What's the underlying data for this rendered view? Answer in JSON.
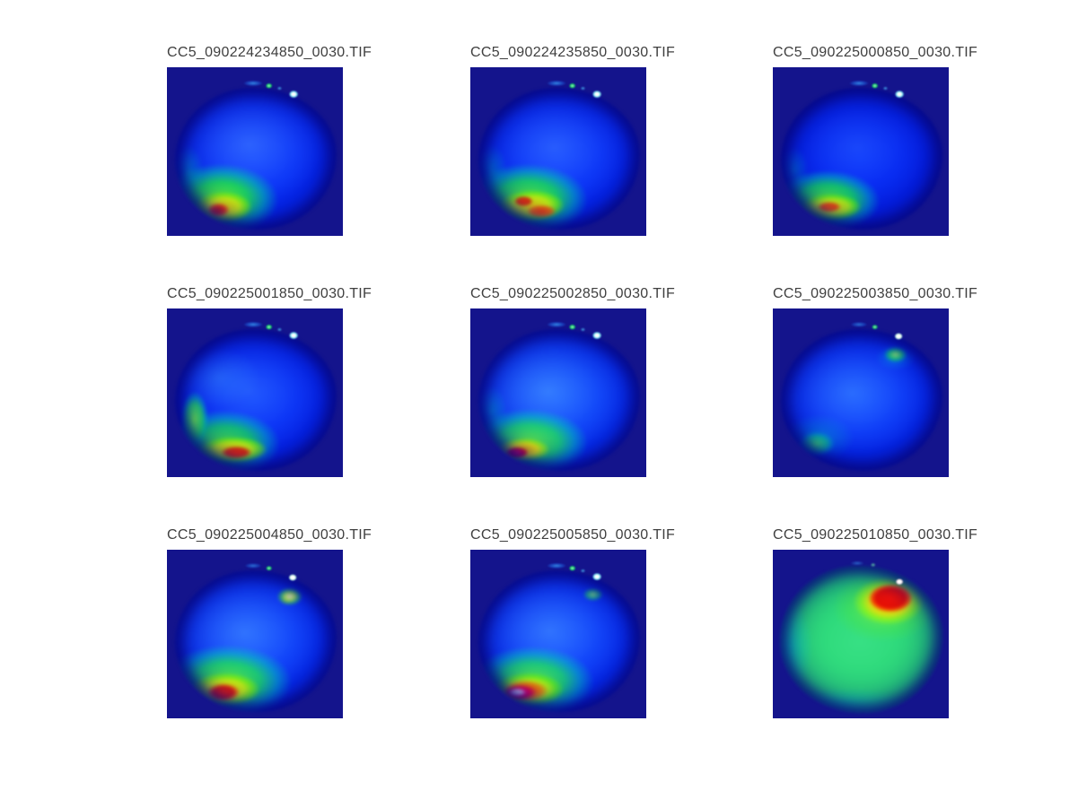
{
  "figure": {
    "background_color": "#ffffff",
    "tile_background_color": "#14148c",
    "title_color": "#3f3f3f"
  },
  "chart_data": {
    "type": "heatmap",
    "subtype": "thermal_image_montage",
    "colormap": "jet",
    "grid": {
      "rows": 3,
      "cols": 3
    },
    "background_color": "#ffffff",
    "tile_background_color": "#14148c",
    "legend": "none",
    "axes": "none",
    "panels": [
      {
        "title": "CC5_090224234850_0030.TIF",
        "row": 1,
        "col": 1,
        "body": "blue disc, brighter blue center",
        "hot_region": "bottom-left green/yellow wedge with small red core at (27%,86%)",
        "top_spots": "green speck (58%,11%), white spot (72%,16%), faint cyan streak"
      },
      {
        "title": "CC5_090224235850_0030.TIF",
        "row": 1,
        "col": 2,
        "body": "blue disc",
        "hot_region": "bottom-left elongated red-orange arc from (28%,80%) to (39%,87%) in yellow-green halo",
        "top_spots": "green speck, white spot at top-right edge"
      },
      {
        "title": "CC5_090225000850_0030.TIF",
        "row": 1,
        "col": 3,
        "body": "darker blue disc",
        "hot_region": "bottom-left green crescent with orange-red arc at (30%,84%)",
        "top_spots": "green speck, white spot at top-right edge"
      },
      {
        "title": "CC5_090225001850_0030.TIF",
        "row": 2,
        "col": 1,
        "body": "blue disc with cyan tinge upper-left",
        "hot_region": "green band along lower-left edge, red core at (38%,87%)",
        "top_spots": "green speck, white spot at top-right edge"
      },
      {
        "title": "CC5_090225002850_0030.TIF",
        "row": 2,
        "col": 2,
        "body": "lighter cyan-blue disc",
        "hot_region": "bottom-left hot spot with magenta-red core at (24%,87%) and yellow-green halo",
        "top_spots": "green speck, white spot at top-right edge"
      },
      {
        "title": "CC5_090225003850_0030.TIF",
        "row": 2,
        "col": 3,
        "body": "cyan-blue disc",
        "hot_region": "soft green blob bottom-left at (22%,81%); bright white-green spot at top-right (71%,18%)",
        "top_spots": "white-cored green spot at top-right edge"
      },
      {
        "title": "CC5_090225004850_0030.TIF",
        "row": 3,
        "col": 1,
        "body": "cyan-blue disc",
        "hot_region": "large bottom-left red blob at (30%,86%) with yellow-green halo; white-yellow spot top-right (71%,18%)",
        "top_spots": "white-cored yellow-green spot at top-right edge"
      },
      {
        "title": "CC5_090225005850_0030.TIF",
        "row": 3,
        "col": 2,
        "body": "cyan-blue disc",
        "hot_region": "very hot bottom-left: white-magenta core at (24%,86%) through red, yellow, green rings",
        "top_spots": "white spot with green ring at top-right edge"
      },
      {
        "title": "CC5_090225010850_0030.TIF",
        "row": 3,
        "col": 3,
        "body": "mostly green disc with cyan rim",
        "hot_region": "large red blob top-right at (68%,22%) with white core (72%,19%) and yellow-orange ring",
        "top_spots": "white core inside red blob"
      }
    ]
  }
}
